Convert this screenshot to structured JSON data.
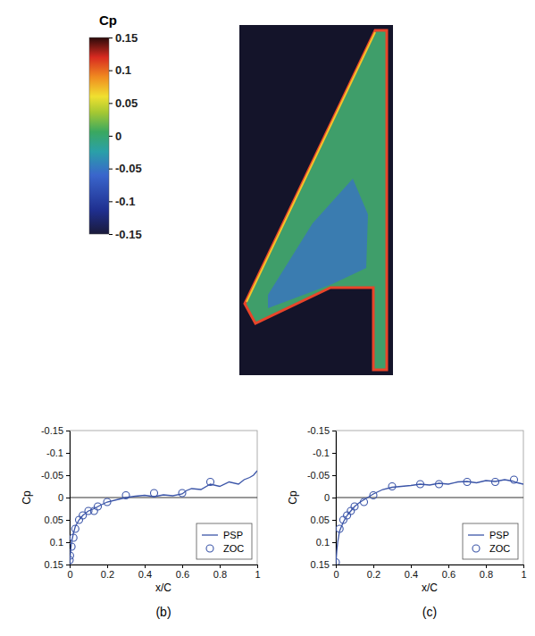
{
  "chart_data": [
    {
      "type": "color_map",
      "title": "Cp",
      "colorbar_range": [
        -0.15,
        0.15
      ],
      "colorbar_ticks": [
        0.15,
        0.1,
        0.05,
        0,
        -0.05,
        -0.1,
        -0.15
      ]
    },
    {
      "type": "line",
      "panel_label": "(b)",
      "x_label": "x/C",
      "y_label": "Cp",
      "xlim": [
        0,
        1
      ],
      "xticks": [
        0,
        0.2,
        0.4,
        0.6,
        0.8,
        1
      ],
      "ylim": [
        0.15,
        -0.15
      ],
      "yticks": [
        -0.15,
        -0.1,
        -0.05,
        0,
        0.05,
        0.1,
        0.15
      ],
      "reference_line": 0,
      "legend": "lower right",
      "series": [
        {
          "name": "PSP",
          "type": "line",
          "color": "#3b55a8",
          "line_style": "solid",
          "x": [
            0,
            0.005,
            0.01,
            0.02,
            0.03,
            0.05,
            0.07,
            0.1,
            0.13,
            0.16,
            0.2,
            0.25,
            0.3,
            0.35,
            0.4,
            0.45,
            0.5,
            0.55,
            0.6,
            0.62,
            0.65,
            0.7,
            0.75,
            0.8,
            0.85,
            0.9,
            0.93,
            0.96,
            0.98,
            1
          ],
          "values": [
            0.15,
            0.12,
            0.1,
            0.08,
            0.065,
            0.05,
            0.04,
            0.03,
            0.025,
            0.018,
            0.01,
            0.005,
            0.0,
            -0.003,
            -0.005,
            -0.002,
            -0.006,
            -0.004,
            -0.008,
            -0.015,
            -0.02,
            -0.018,
            -0.03,
            -0.025,
            -0.035,
            -0.03,
            -0.04,
            -0.045,
            -0.05,
            -0.06
          ]
        },
        {
          "name": "ZOC",
          "type": "scatter",
          "color": "#3b55a8",
          "marker": "circle",
          "x": [
            0.0,
            0.002,
            0.01,
            0.02,
            0.03,
            0.05,
            0.07,
            0.1,
            0.13,
            0.15,
            0.2,
            0.3,
            0.45,
            0.6,
            0.75
          ],
          "values": [
            0.14,
            0.13,
            0.11,
            0.09,
            0.07,
            0.05,
            0.04,
            0.03,
            0.03,
            0.02,
            0.01,
            -0.005,
            -0.01,
            -0.01,
            -0.035
          ]
        }
      ]
    },
    {
      "type": "line",
      "panel_label": "(c)",
      "x_label": "x/C",
      "y_label": "Cp",
      "xlim": [
        0,
        1
      ],
      "xticks": [
        0,
        0.2,
        0.4,
        0.6,
        0.8,
        1
      ],
      "ylim": [
        0.15,
        -0.15
      ],
      "yticks": [
        -0.15,
        -0.1,
        -0.05,
        0,
        0.05,
        0.1,
        0.15
      ],
      "reference_line": 0,
      "legend": "lower right",
      "series": [
        {
          "name": "PSP",
          "type": "line",
          "color": "#3b55a8",
          "line_style": "solid",
          "x": [
            0,
            0.005,
            0.01,
            0.02,
            0.04,
            0.06,
            0.08,
            0.1,
            0.13,
            0.17,
            0.2,
            0.25,
            0.3,
            0.35,
            0.4,
            0.45,
            0.5,
            0.55,
            0.6,
            0.65,
            0.7,
            0.75,
            0.8,
            0.85,
            0.9,
            0.94,
            0.97,
            1
          ],
          "values": [
            0.15,
            0.12,
            0.1,
            0.075,
            0.055,
            0.04,
            0.03,
            0.02,
            0.01,
            0.0,
            -0.008,
            -0.018,
            -0.023,
            -0.025,
            -0.027,
            -0.03,
            -0.028,
            -0.032,
            -0.03,
            -0.035,
            -0.036,
            -0.033,
            -0.038,
            -0.036,
            -0.04,
            -0.037,
            -0.033,
            -0.03
          ]
        },
        {
          "name": "ZOC",
          "type": "scatter",
          "color": "#3b55a8",
          "marker": "circle",
          "x": [
            0.0,
            0.02,
            0.04,
            0.06,
            0.08,
            0.1,
            0.15,
            0.2,
            0.3,
            0.45,
            0.55,
            0.7,
            0.85,
            0.95
          ],
          "values": [
            0.145,
            0.07,
            0.05,
            0.04,
            0.03,
            0.02,
            0.01,
            -0.005,
            -0.025,
            -0.03,
            -0.03,
            -0.035,
            -0.035,
            -0.04
          ]
        }
      ]
    }
  ]
}
